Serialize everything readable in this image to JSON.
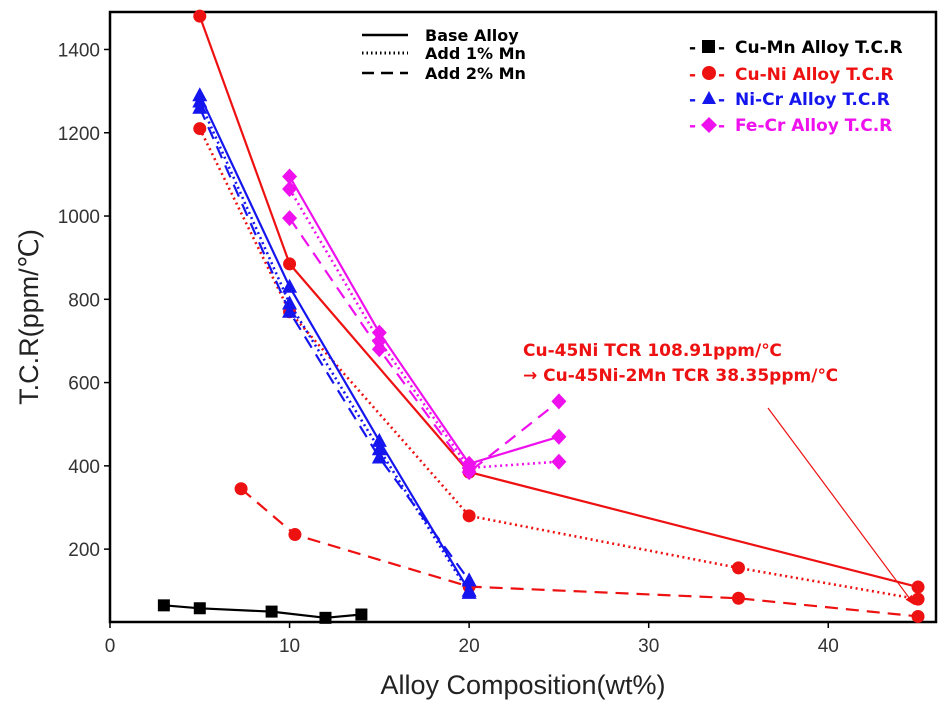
{
  "chart_data": {
    "type": "line",
    "title": "",
    "xlabel": "Alloy Composition(wt%)",
    "ylabel": "T.C.R(ppm/℃)",
    "xlim": [
      0,
      46
    ],
    "ylim": [
      25,
      1490
    ],
    "xticks": [
      0,
      10,
      20,
      30,
      40
    ],
    "yticks": [
      200,
      400,
      600,
      800,
      1000,
      1200,
      1400
    ],
    "grid": false,
    "line_style_legend": {
      "placement": "top-center",
      "entries": [
        {
          "label": "Base Alloy",
          "style": "solid"
        },
        {
          "label": "Add 1% Mn",
          "style": "dotted"
        },
        {
          "label": "Add 2% Mn",
          "style": "dashed"
        }
      ]
    },
    "series_legend": {
      "placement": "top-right",
      "entries": [
        {
          "label": "Cu-Mn  Alloy T.C.R",
          "color": "#000000",
          "marker": "square"
        },
        {
          "label": "Cu-Ni  Alloy T.C.R",
          "color": "#ee1111",
          "marker": "circle"
        },
        {
          "label": "Ni-Cr  Alloy T.C.R",
          "color": "#1515ee",
          "marker": "triangle"
        },
        {
          "label": "Fe-Cr  Alloy T.C.R",
          "color": "#ee11ee",
          "marker": "diamond"
        }
      ]
    },
    "series": [
      {
        "alloy": "Cu-Mn",
        "style": "solid",
        "color": "#000000",
        "marker": "square",
        "x": [
          3,
          5,
          9,
          12,
          14
        ],
        "y": [
          65,
          58,
          50,
          35,
          43
        ]
      },
      {
        "alloy": "Cu-Ni",
        "style": "solid",
        "color": "#ee1111",
        "marker": "circle",
        "x": [
          5,
          10,
          20,
          45
        ],
        "y": [
          1480,
          885,
          385,
          108.91
        ]
      },
      {
        "alloy": "Cu-Ni",
        "style": "dotted",
        "color": "#ee1111",
        "marker": "circle",
        "x": [
          5,
          10,
          20,
          35,
          45
        ],
        "y": [
          1210,
          770,
          280,
          155,
          80
        ]
      },
      {
        "alloy": "Cu-Ni",
        "style": "dashed",
        "color": "#ee1111",
        "marker": "circle",
        "x": [
          7.3,
          10.3,
          20,
          35,
          45
        ],
        "y": [
          345,
          235,
          110,
          82,
          38.35
        ]
      },
      {
        "alloy": "Ni-Cr",
        "style": "solid",
        "color": "#1515ee",
        "marker": "triangle",
        "x": [
          5,
          10,
          15,
          20
        ],
        "y": [
          1290,
          830,
          460,
          100
        ]
      },
      {
        "alloy": "Ni-Cr",
        "style": "dotted",
        "color": "#1515ee",
        "marker": "triangle",
        "x": [
          5,
          10,
          15,
          20
        ],
        "y": [
          1275,
          790,
          440,
          95
        ]
      },
      {
        "alloy": "Ni-Cr",
        "style": "dashed",
        "color": "#1515ee",
        "marker": "triangle",
        "x": [
          5,
          10,
          15,
          20
        ],
        "y": [
          1260,
          770,
          420,
          125
        ]
      },
      {
        "alloy": "Fe-Cr",
        "style": "solid",
        "color": "#ee11ee",
        "marker": "diamond",
        "x": [
          10,
          15,
          20,
          25
        ],
        "y": [
          1095,
          720,
          405,
          470
        ]
      },
      {
        "alloy": "Fe-Cr",
        "style": "dotted",
        "color": "#ee11ee",
        "marker": "diamond",
        "x": [
          10,
          15,
          20,
          25
        ],
        "y": [
          1065,
          700,
          395,
          410
        ]
      },
      {
        "alloy": "Fe-Cr",
        "style": "dashed",
        "color": "#ee11ee",
        "marker": "diamond",
        "x": [
          10,
          15,
          20,
          25
        ],
        "y": [
          995,
          680,
          385,
          555
        ]
      }
    ],
    "annotation": {
      "lines": [
        "Cu-45Ni TCR 108.91ppm/℃",
        "→ Cu-45Ni-2Mn TCR 38.35ppm/℃"
      ],
      "color": "#ee1111",
      "arrow_to": {
        "x": 45,
        "y": 38.35
      }
    }
  }
}
